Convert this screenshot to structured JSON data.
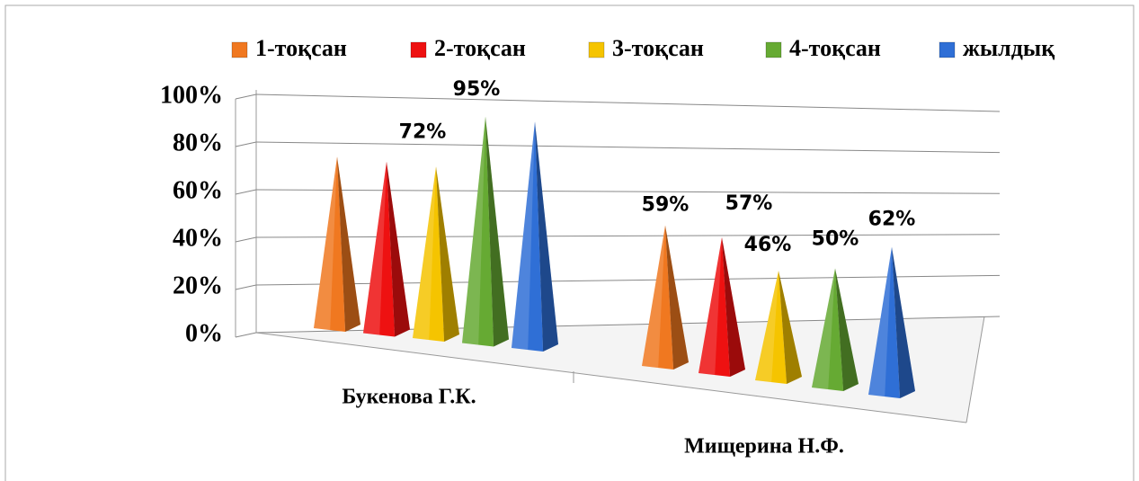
{
  "chart_data": {
    "type": "pyramid3d",
    "categories": [
      "Букенова Г.К.",
      "Мищерина Н.Ф."
    ],
    "series": [
      {
        "name": "1-тоқсан",
        "color": "#f07820",
        "values": [
          72,
          59
        ],
        "value_labels": [
          null,
          "59%"
        ]
      },
      {
        "name": "2-тоқсан",
        "color": "#ee1111",
        "values": [
          72,
          57
        ],
        "value_labels": [
          "72%",
          "57%"
        ]
      },
      {
        "name": "3-тоқсан",
        "color": "#f5c400",
        "values": [
          72,
          46
        ],
        "value_labels": [
          null,
          "46%"
        ]
      },
      {
        "name": "4-тоқсан",
        "color": "#66aa33",
        "values": [
          95,
          50
        ],
        "value_labels": [
          "95%",
          "50%"
        ]
      },
      {
        "name": "жылдық",
        "color": "#2f6fd6",
        "values": [
          95,
          62
        ],
        "value_labels": [
          null,
          "62%"
        ]
      }
    ],
    "ylim": [
      0,
      100
    ],
    "yticks": [
      {
        "value": 0,
        "label": "0%"
      },
      {
        "value": 20,
        "label": "20%"
      },
      {
        "value": 40,
        "label": "40%"
      },
      {
        "value": 60,
        "label": "60%"
      },
      {
        "value": 80,
        "label": "80%"
      },
      {
        "value": 100,
        "label": "100%"
      }
    ],
    "grid": true,
    "legend": "top"
  }
}
